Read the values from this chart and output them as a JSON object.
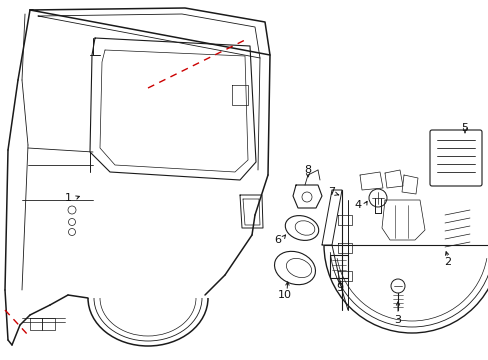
{
  "bg_color": "#ffffff",
  "line_color": "#1a1a1a",
  "red_color": "#cc0000",
  "label_color": "#111111",
  "figsize": [
    4.89,
    3.6
  ],
  "dpi": 100
}
